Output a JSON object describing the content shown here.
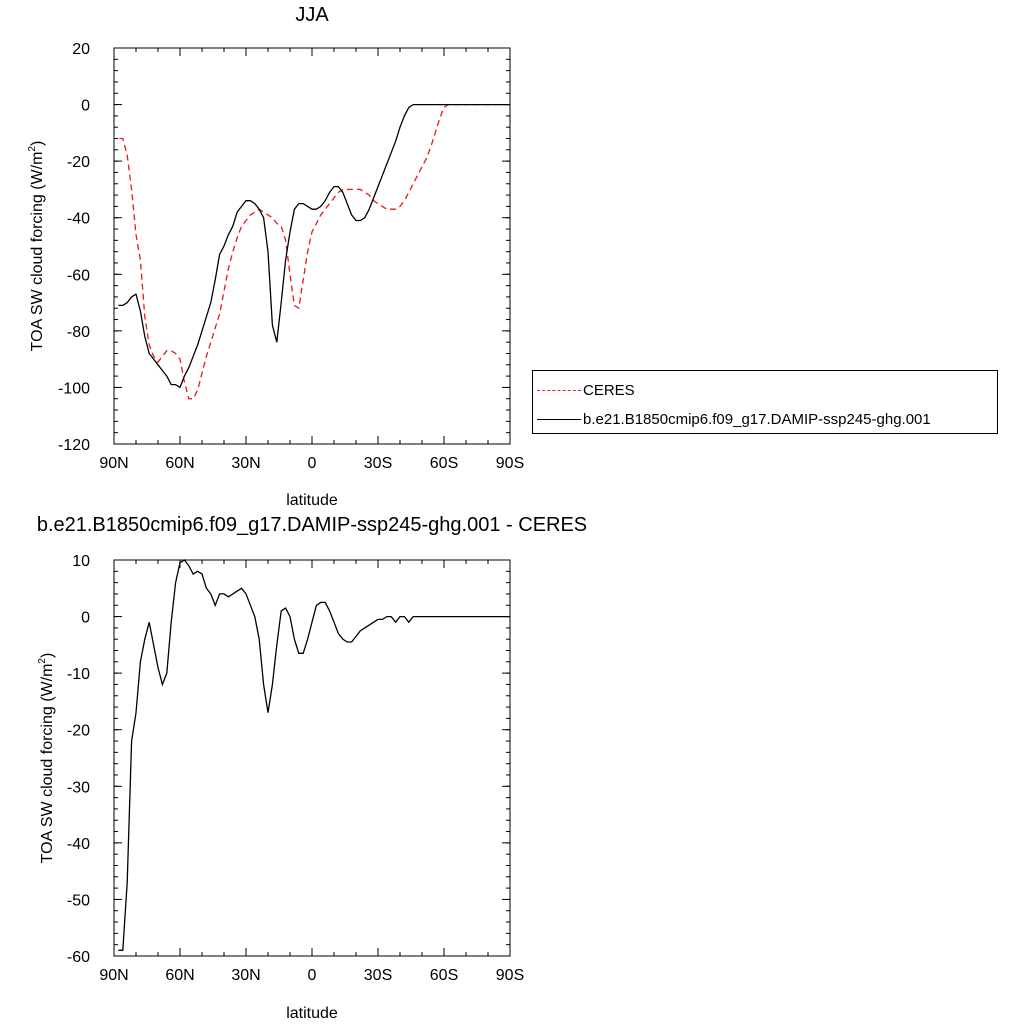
{
  "colors": {
    "ceres": "#e8191d",
    "model": "#000000"
  },
  "chart_data": [
    {
      "type": "line",
      "title": "JJA",
      "xlabel": "latitude",
      "ylabel_prefix": "TOA SW cloud forcing (W/m",
      "ylabel_sup": "2",
      "ylabel_suffix": ")",
      "xlim": [
        90,
        -90
      ],
      "ylim": [
        -120,
        20
      ],
      "xticks": [
        90,
        60,
        30,
        0,
        -30,
        -60,
        -90
      ],
      "xtick_labels": [
        "90N",
        "60N",
        "30N",
        "0",
        "30S",
        "60S",
        "90S"
      ],
      "yticks": [
        20,
        0,
        -20,
        -40,
        -60,
        -80,
        -100,
        -120
      ],
      "ytick_labels": [
        "20",
        "0",
        "-20",
        "-40",
        "-60",
        "-80",
        "-100",
        "-120"
      ],
      "legend": {
        "placement": "right"
      },
      "series": [
        {
          "name": "CERES",
          "style": "dashed",
          "x": [
            87.5,
            86,
            84,
            82,
            80,
            78,
            76,
            74,
            72,
            70,
            68,
            66,
            64,
            62,
            60,
            58,
            56,
            54,
            52,
            50,
            48,
            46,
            44,
            42,
            40,
            38,
            36,
            34,
            32,
            30,
            28,
            26,
            24,
            22,
            20,
            18,
            16,
            14,
            12,
            10,
            8,
            6,
            4,
            2,
            0,
            -2,
            -4,
            -6,
            -8,
            -10,
            -12,
            -14,
            -16,
            -18,
            -20,
            -22,
            -24,
            -26,
            -28,
            -30,
            -32,
            -34,
            -36,
            -38,
            -40,
            -42,
            -44,
            -46,
            -48,
            -50,
            -52,
            -54,
            -56,
            -58,
            -60,
            -62,
            -64,
            -66,
            -68,
            -70,
            -72,
            -74,
            -76,
            -78,
            -80,
            -82,
            -84,
            -86,
            -88,
            -90
          ],
          "values": [
            -12,
            -12,
            -18,
            -30,
            -46,
            -55,
            -75,
            -85,
            -89,
            -91,
            -89,
            -87,
            -87,
            -88,
            -90,
            -98,
            -104,
            -104,
            -101,
            -95,
            -89,
            -84,
            -79,
            -74,
            -66,
            -58,
            -52,
            -47,
            -43,
            -41,
            -39,
            -38,
            -37,
            -38,
            -39,
            -40,
            -42,
            -43,
            -48,
            -60,
            -71,
            -72,
            -62,
            -52,
            -45,
            -42,
            -39,
            -37,
            -35,
            -33,
            -31,
            -30,
            -30,
            -30,
            -30,
            -30,
            -31,
            -32,
            -34,
            -35,
            -36,
            -37,
            -37,
            -37,
            -36,
            -34,
            -31,
            -28,
            -25,
            -22,
            -19,
            -15,
            -10,
            -5,
            -1,
            0,
            0,
            0,
            0,
            0,
            0,
            0,
            0,
            0,
            0,
            0,
            0,
            0,
            0,
            0
          ]
        },
        {
          "name": "b.e21.B1850cmip6.f09_g17.DAMIP-ssp245-ghg.001",
          "style": "solid",
          "x": [
            88,
            86,
            84,
            82,
            80,
            78,
            76,
            74,
            72,
            70,
            68,
            66,
            64,
            62,
            60,
            58,
            56,
            54,
            52,
            50,
            48,
            46,
            44,
            42,
            40,
            38,
            36,
            34,
            32,
            30,
            28,
            26,
            24,
            22,
            20,
            18,
            16,
            14,
            12,
            10,
            8,
            6,
            4,
            2,
            0,
            -2,
            -4,
            -6,
            -8,
            -10,
            -12,
            -14,
            -16,
            -18,
            -20,
            -22,
            -24,
            -26,
            -28,
            -30,
            -32,
            -34,
            -36,
            -38,
            -40,
            -42,
            -44,
            -46,
            -48,
            -50,
            -52,
            -54,
            -56,
            -58,
            -60,
            -62,
            -64,
            -66,
            -68,
            -70,
            -72,
            -74,
            -76,
            -78,
            -80,
            -82,
            -84,
            -86,
            -88,
            -90
          ],
          "values": [
            -71,
            -71,
            -70,
            -68,
            -67,
            -73,
            -82,
            -88,
            -90,
            -92,
            -94,
            -96,
            -99,
            -99,
            -100,
            -96,
            -93,
            -89,
            -85,
            -80,
            -75,
            -70,
            -62,
            -53,
            -50,
            -46,
            -43,
            -38,
            -36,
            -34,
            -34,
            -35,
            -37,
            -40,
            -52,
            -78,
            -84,
            -70,
            -55,
            -45,
            -37,
            -35,
            -35,
            -36,
            -37,
            -37,
            -36,
            -34,
            -31,
            -29,
            -29,
            -31,
            -35,
            -39,
            -41,
            -41,
            -40,
            -37,
            -33,
            -29,
            -25,
            -21,
            -17,
            -13,
            -8,
            -4,
            -1,
            0,
            0,
            0,
            0,
            0,
            0,
            0,
            0,
            0,
            0,
            0,
            0,
            0,
            0,
            0,
            0,
            0,
            0,
            0,
            0,
            0,
            0,
            0
          ]
        }
      ]
    },
    {
      "type": "line",
      "title": "b.e21.B1850cmip6.f09_g17.DAMIP-ssp245-ghg.001 - CERES",
      "xlabel": "latitude",
      "ylabel_prefix": "TOA SW cloud forcing (W/m",
      "ylabel_sup": "2",
      "ylabel_suffix": ")",
      "xlim": [
        90,
        -90
      ],
      "ylim": [
        -60,
        10
      ],
      "xticks": [
        90,
        60,
        30,
        0,
        -30,
        -60,
        -90
      ],
      "xtick_labels": [
        "90N",
        "60N",
        "30N",
        "0",
        "30S",
        "60S",
        "90S"
      ],
      "yticks": [
        10,
        0,
        -10,
        -20,
        -30,
        -40,
        -50,
        -60
      ],
      "ytick_labels": [
        "10",
        "0",
        "-10",
        "-20",
        "-30",
        "-40",
        "-50",
        "-60"
      ],
      "series": [
        {
          "style": "solid",
          "x": [
            88,
            86,
            84,
            82,
            80,
            78,
            76,
            74,
            72,
            70,
            68,
            66,
            64,
            62,
            60,
            58,
            56,
            54,
            52,
            50,
            48,
            46,
            44,
            42,
            40,
            38,
            36,
            34,
            32,
            30,
            28,
            26,
            24,
            22,
            20,
            18,
            16,
            14,
            12,
            10,
            8,
            6,
            4,
            2,
            0,
            -2,
            -4,
            -6,
            -8,
            -10,
            -12,
            -14,
            -16,
            -18,
            -20,
            -22,
            -24,
            -26,
            -28,
            -30,
            -32,
            -34,
            -36,
            -38,
            -40,
            -42,
            -44,
            -46,
            -48,
            -50,
            -52,
            -54,
            -56,
            -58,
            -60,
            -62,
            -64,
            -66,
            -68,
            -70,
            -72,
            -74,
            -76,
            -78,
            -80,
            -82,
            -84,
            -86,
            -88,
            -90
          ],
          "values": [
            -59,
            -59,
            -47,
            -22,
            -17,
            -8,
            -4,
            -1,
            -5,
            -9,
            -12,
            -10,
            -1,
            6,
            9.5,
            10,
            9,
            7.5,
            8,
            7.5,
            5,
            4,
            2,
            4,
            4,
            3.5,
            4,
            4.5,
            5,
            4,
            2,
            0,
            -4,
            -12,
            -17,
            -12,
            -5,
            1,
            1.5,
            0,
            -4,
            -6.5,
            -6.5,
            -4,
            -1,
            2,
            2.5,
            2.5,
            1,
            -1,
            -3,
            -4,
            -4.5,
            -4.5,
            -3.5,
            -2.5,
            -2,
            -1.5,
            -1,
            -0.5,
            -0.5,
            0,
            0,
            -1,
            0,
            0,
            -1,
            0,
            0,
            0,
            0,
            0,
            0,
            0,
            0,
            0,
            0,
            0,
            0,
            0,
            0,
            0,
            0,
            0,
            0,
            0,
            0,
            0,
            0,
            0
          ]
        }
      ]
    }
  ],
  "legend_entries": [
    "CERES",
    "b.e21.B1850cmip6.f09_g17.DAMIP-ssp245-ghg.001"
  ]
}
